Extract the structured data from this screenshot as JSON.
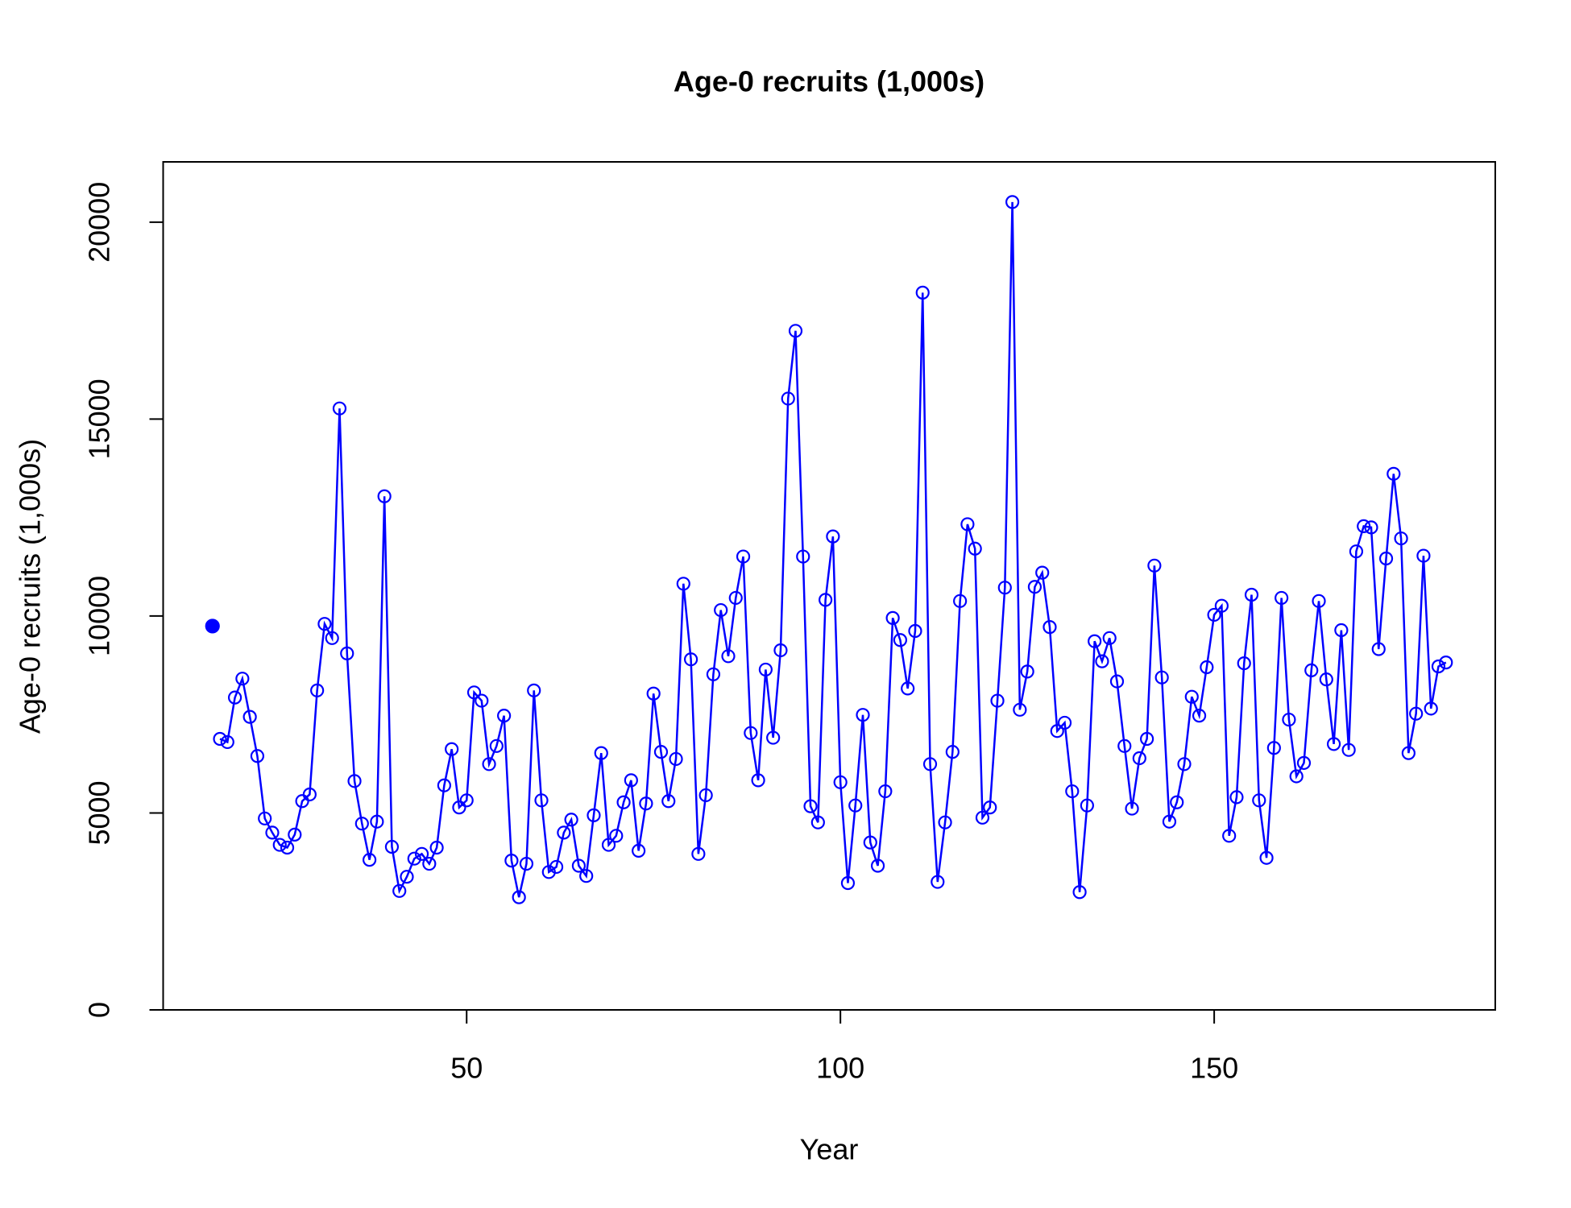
{
  "chart_data": {
    "type": "line",
    "title": "Age-0 recruits (1,000s)",
    "x_label": "Year",
    "y_label": "Age-0 recruits (1,000s)",
    "xlim": [
      9.4,
      187.6
    ],
    "ylim": [
      0,
      21530
    ],
    "xticks": [
      50,
      100,
      150
    ],
    "yticks": [
      0,
      5000,
      10000,
      15000,
      20000
    ],
    "series": [
      {
        "color": "#0000ff",
        "style": "line-points",
        "x": [
          17,
          18,
          19,
          20,
          21,
          22,
          23,
          24,
          25,
          26,
          27,
          28,
          29,
          30,
          31,
          32,
          33,
          34,
          35,
          36,
          37,
          38,
          39,
          40,
          41,
          42,
          43,
          44,
          45,
          46,
          47,
          48,
          49,
          50,
          51,
          52,
          53,
          54,
          55,
          56,
          57,
          58,
          59,
          60,
          61,
          62,
          63,
          64,
          65,
          66,
          67,
          68,
          69,
          70,
          71,
          72,
          73,
          74,
          75,
          76,
          77,
          78,
          79,
          80,
          81,
          82,
          83,
          84,
          85,
          86,
          87,
          88,
          89,
          90,
          91,
          92,
          93,
          94,
          95,
          96,
          97,
          98,
          99,
          100,
          101,
          102,
          103,
          104,
          105,
          106,
          107,
          108,
          109,
          110,
          111,
          112,
          113,
          114,
          115,
          116,
          117,
          118,
          119,
          120,
          121,
          122,
          123,
          124,
          125,
          126,
          127,
          128,
          129,
          130,
          131,
          132,
          133,
          134,
          135,
          136,
          137,
          138,
          139,
          140,
          141,
          142,
          143,
          144,
          145,
          146,
          147,
          148,
          149,
          150,
          151,
          152,
          153,
          154,
          155,
          156,
          157,
          158,
          159,
          160,
          161,
          162,
          163,
          164,
          165,
          166,
          167,
          168,
          169,
          170,
          171,
          172,
          173,
          174,
          175,
          176,
          177,
          178,
          179,
          180,
          181
        ],
        "values": [
          6880,
          6800,
          7930,
          8410,
          7440,
          6445,
          4860,
          4500,
          4190,
          4120,
          4450,
          5300,
          5470,
          8110,
          9800,
          9440,
          15270,
          9050,
          5810,
          4730,
          3810,
          4780,
          13040,
          4140,
          3020,
          3380,
          3840,
          3960,
          3710,
          4120,
          5700,
          6620,
          5140,
          5320,
          8060,
          7850,
          6240,
          6700,
          7470,
          3790,
          2860,
          3710,
          8110,
          5320,
          3500,
          3630,
          4500,
          4830,
          3660,
          3400,
          4940,
          6520,
          4190,
          4420,
          5270,
          5830,
          4040,
          5240,
          8030,
          6550,
          5300,
          6370,
          10820,
          8900,
          3960,
          5450,
          8520,
          10150,
          8980,
          10460,
          11510,
          7030,
          5830,
          8640,
          6910,
          9130,
          15520,
          17240,
          11510,
          5170,
          4760,
          10410,
          12020,
          5780,
          3220,
          5190,
          7490,
          4250,
          3660,
          5550,
          9950,
          9390,
          8160,
          9620,
          18210,
          6240,
          3250,
          4760,
          6550,
          10380,
          12330,
          11710,
          4880,
          5140,
          7850,
          10720,
          20510,
          7620,
          8590,
          10740,
          11100,
          9720,
          7080,
          7290,
          5550,
          2990,
          5190,
          9360,
          8850,
          9440,
          8340,
          6700,
          5110,
          6390,
          6880,
          11280,
          8440,
          4780,
          5270,
          6240,
          7950,
          7470,
          8700,
          10030,
          10260,
          4420,
          5400,
          8800,
          10540,
          5320,
          3860,
          6650,
          10460,
          7370,
          5930,
          6270,
          8620,
          10380,
          8390,
          6750,
          9640,
          6600,
          11640,
          12280,
          12250,
          9160,
          11460,
          13610,
          11970,
          6520,
          7520,
          11530,
          7650,
          8720,
          8820
        ]
      },
      {
        "color": "#0000ff",
        "style": "filled-point",
        "x": [
          16
        ],
        "values": [
          9744
        ]
      }
    ]
  }
}
